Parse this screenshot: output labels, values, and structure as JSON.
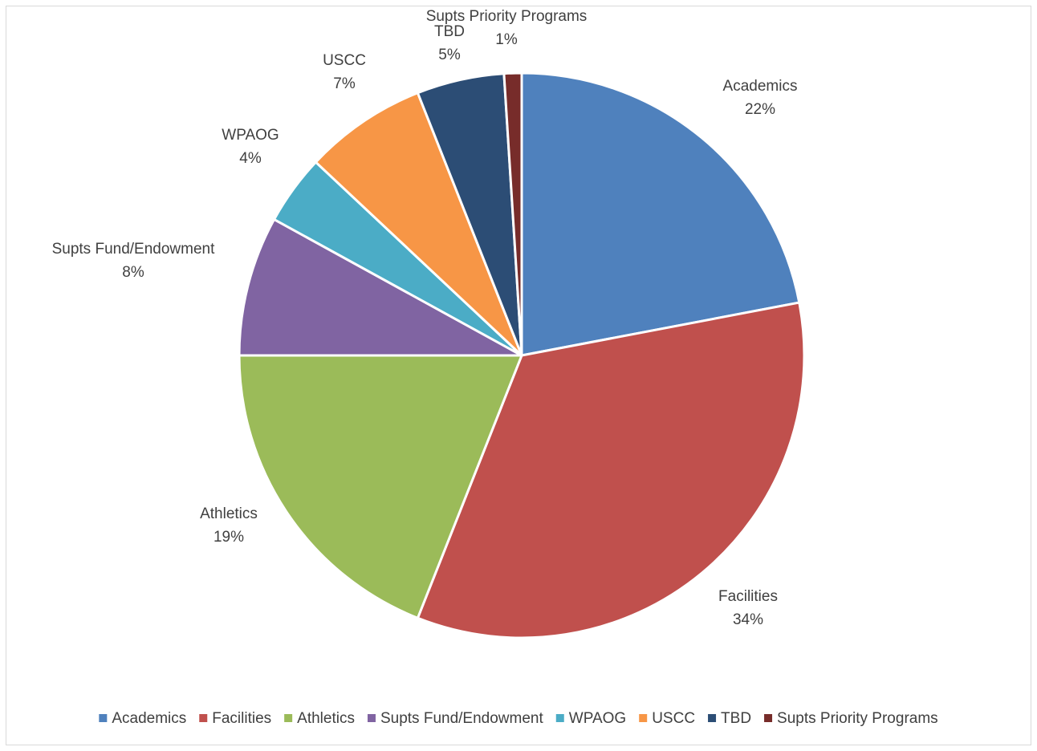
{
  "chart_data": {
    "type": "pie",
    "title": "",
    "legend_position": "bottom",
    "slices": [
      {
        "label": "Academics",
        "value": 22,
        "value_label": "22%",
        "color": "#4F81BD"
      },
      {
        "label": "Facilities",
        "value": 34,
        "value_label": "34%",
        "color": "#C0504D"
      },
      {
        "label": "Athletics",
        "value": 19,
        "value_label": "19%",
        "color": "#9BBB59"
      },
      {
        "label": "Supts Fund/Endowment",
        "value": 8,
        "value_label": "8%",
        "color": "#8064A2"
      },
      {
        "label": "WPAOG",
        "value": 4,
        "value_label": "4%",
        "color": "#4BACC6"
      },
      {
        "label": "USCC",
        "value": 7,
        "value_label": "7%",
        "color": "#F79646"
      },
      {
        "label": "TBD",
        "value": 5,
        "value_label": "5%",
        "color": "#2C4D75"
      },
      {
        "label": "Supts Priority Programs",
        "value": 1,
        "value_label": "1%",
        "color": "#772C2A"
      }
    ]
  }
}
